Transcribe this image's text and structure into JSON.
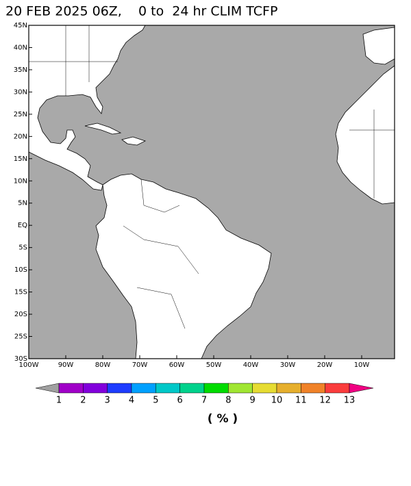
{
  "title": "20 FEB 2025 06Z,    0 to  24 hr CLIM TCFP",
  "map": {
    "lat_labels": [
      {
        "value": 45,
        "label": "45N"
      },
      {
        "value": 40,
        "label": "40N"
      },
      {
        "value": 35,
        "label": "35N"
      },
      {
        "value": 30,
        "label": "30N"
      },
      {
        "value": 25,
        "label": "25N"
      },
      {
        "value": 20,
        "label": "20N"
      },
      {
        "value": 15,
        "label": "15N"
      },
      {
        "value": 10,
        "label": "10N"
      },
      {
        "value": 5,
        "label": "5N"
      },
      {
        "value": 0,
        "label": "EQ"
      },
      {
        "value": -5,
        "label": "5S"
      },
      {
        "value": -10,
        "label": "10S"
      },
      {
        "value": -15,
        "label": "15S"
      },
      {
        "value": -20,
        "label": "20S"
      },
      {
        "value": -25,
        "label": "25S"
      },
      {
        "value": -30,
        "label": "30S"
      }
    ],
    "lon_labels": [
      {
        "value": -100,
        "label": "100W"
      },
      {
        "value": -90,
        "label": "90W"
      },
      {
        "value": -80,
        "label": "80W"
      },
      {
        "value": -70,
        "label": "70W"
      },
      {
        "value": -60,
        "label": "60W"
      },
      {
        "value": -50,
        "label": "50W"
      },
      {
        "value": -40,
        "label": "40W"
      },
      {
        "value": -30,
        "label": "30W"
      },
      {
        "value": -20,
        "label": "20W"
      },
      {
        "value": -10,
        "label": "10W"
      }
    ]
  },
  "colorbar": {
    "levels": [
      1,
      2,
      3,
      4,
      5,
      6,
      7,
      8,
      9,
      10,
      11,
      12,
      13
    ],
    "under_color": "#a0a0a0",
    "colors": [
      "#a000c8",
      "#8200dc",
      "#1e3cff",
      "#00a0ff",
      "#00c8c8",
      "#00d28c",
      "#00dc00",
      "#a0e632",
      "#e6dc32",
      "#e6af2d",
      "#f08228",
      "#fa3c3c"
    ],
    "over_color": "#f00082"
  },
  "units": "( % )"
}
